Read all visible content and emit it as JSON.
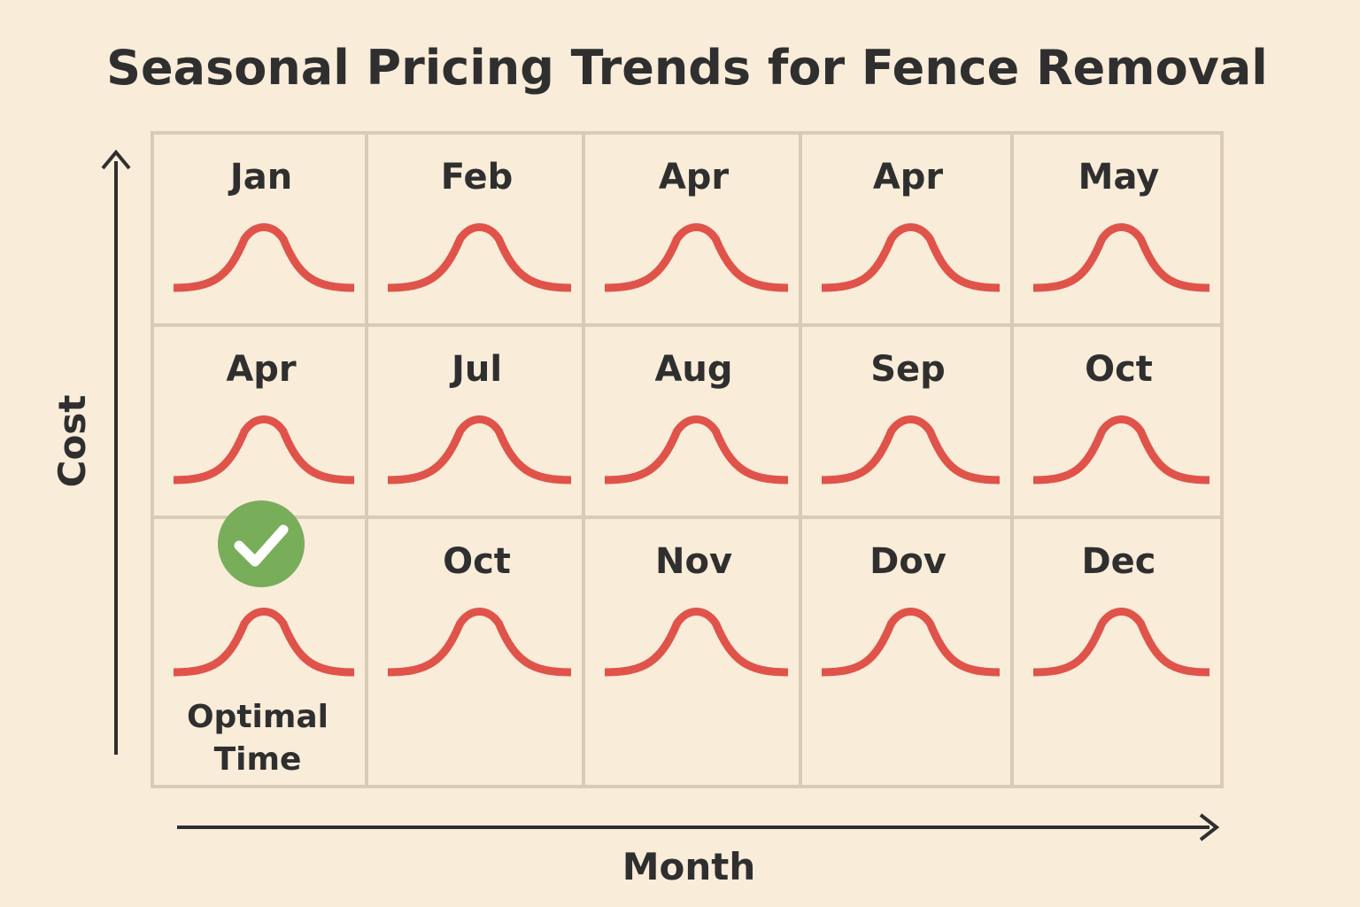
{
  "chart_data": {
    "type": "table",
    "title": "Seasonal Pricing Trends for Fence Removal",
    "xlabel": "Month",
    "ylabel": "Cost",
    "rows": 3,
    "columns": 5,
    "cells": [
      {
        "label": "Jan",
        "curve": "peak"
      },
      {
        "label": "Feb",
        "curve": "peak"
      },
      {
        "label": "Apr",
        "curve": "peak"
      },
      {
        "label": "Apr",
        "curve": "peak"
      },
      {
        "label": "May",
        "curve": "peak"
      },
      {
        "label": "Apr",
        "curve": "peak"
      },
      {
        "label": "Jul",
        "curve": "peak"
      },
      {
        "label": "Aug",
        "curve": "peak"
      },
      {
        "label": "Sep",
        "curve": "peak"
      },
      {
        "label": "Oct",
        "curve": "peak"
      },
      {
        "label": "",
        "curve": "peak",
        "badge": "check-circle-icon",
        "note": [
          "Optimal",
          "Time"
        ]
      },
      {
        "label": "Oct",
        "curve": "peak"
      },
      {
        "label": "Nov",
        "curve": "peak"
      },
      {
        "label": "Dov",
        "curve": "peak"
      },
      {
        "label": "Dec",
        "curve": "peak"
      }
    ],
    "colors": {
      "background": "#f9ecd9",
      "grid": "#d9ccb4",
      "curve": "#e0534a",
      "badge": "#78ad5a",
      "text": "#2f2f2f"
    },
    "grid": true,
    "legend": "none"
  }
}
